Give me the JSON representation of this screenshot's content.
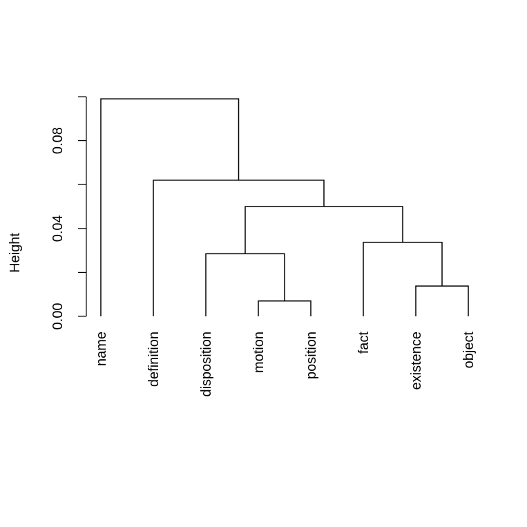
{
  "chart_data": {
    "type": "dendrogram",
    "title": "",
    "xlabel": "",
    "ylabel": "Height",
    "ylim": [
      0,
      0.1
    ],
    "yticks": [
      0.0,
      0.02,
      0.04,
      0.06,
      0.08,
      0.1
    ],
    "ytick_labels": [
      "0.00",
      "",
      "0.04",
      "",
      "0.08",
      ""
    ],
    "leaves": [
      "name",
      "definition",
      "disposition",
      "motion",
      "position",
      "fact",
      "existence",
      "object"
    ],
    "merges": [
      {
        "left": "motion",
        "right": "position",
        "height": 0.007
      },
      {
        "left": "existence",
        "right": "object",
        "height": 0.0138
      },
      {
        "left": "disposition",
        "right": "motion+position",
        "height": 0.0285
      },
      {
        "left": "fact",
        "right": "existence+object",
        "height": 0.0337
      },
      {
        "left": "disposition+motion+position",
        "right": "fact+existence+object",
        "height": 0.05
      },
      {
        "left": "definition",
        "right": "disposition+motion+position+fact+existence+object",
        "height": 0.062
      },
      {
        "left": "name",
        "right": "definition+disposition+motion+position+fact+existence+object",
        "height": 0.099
      }
    ]
  }
}
